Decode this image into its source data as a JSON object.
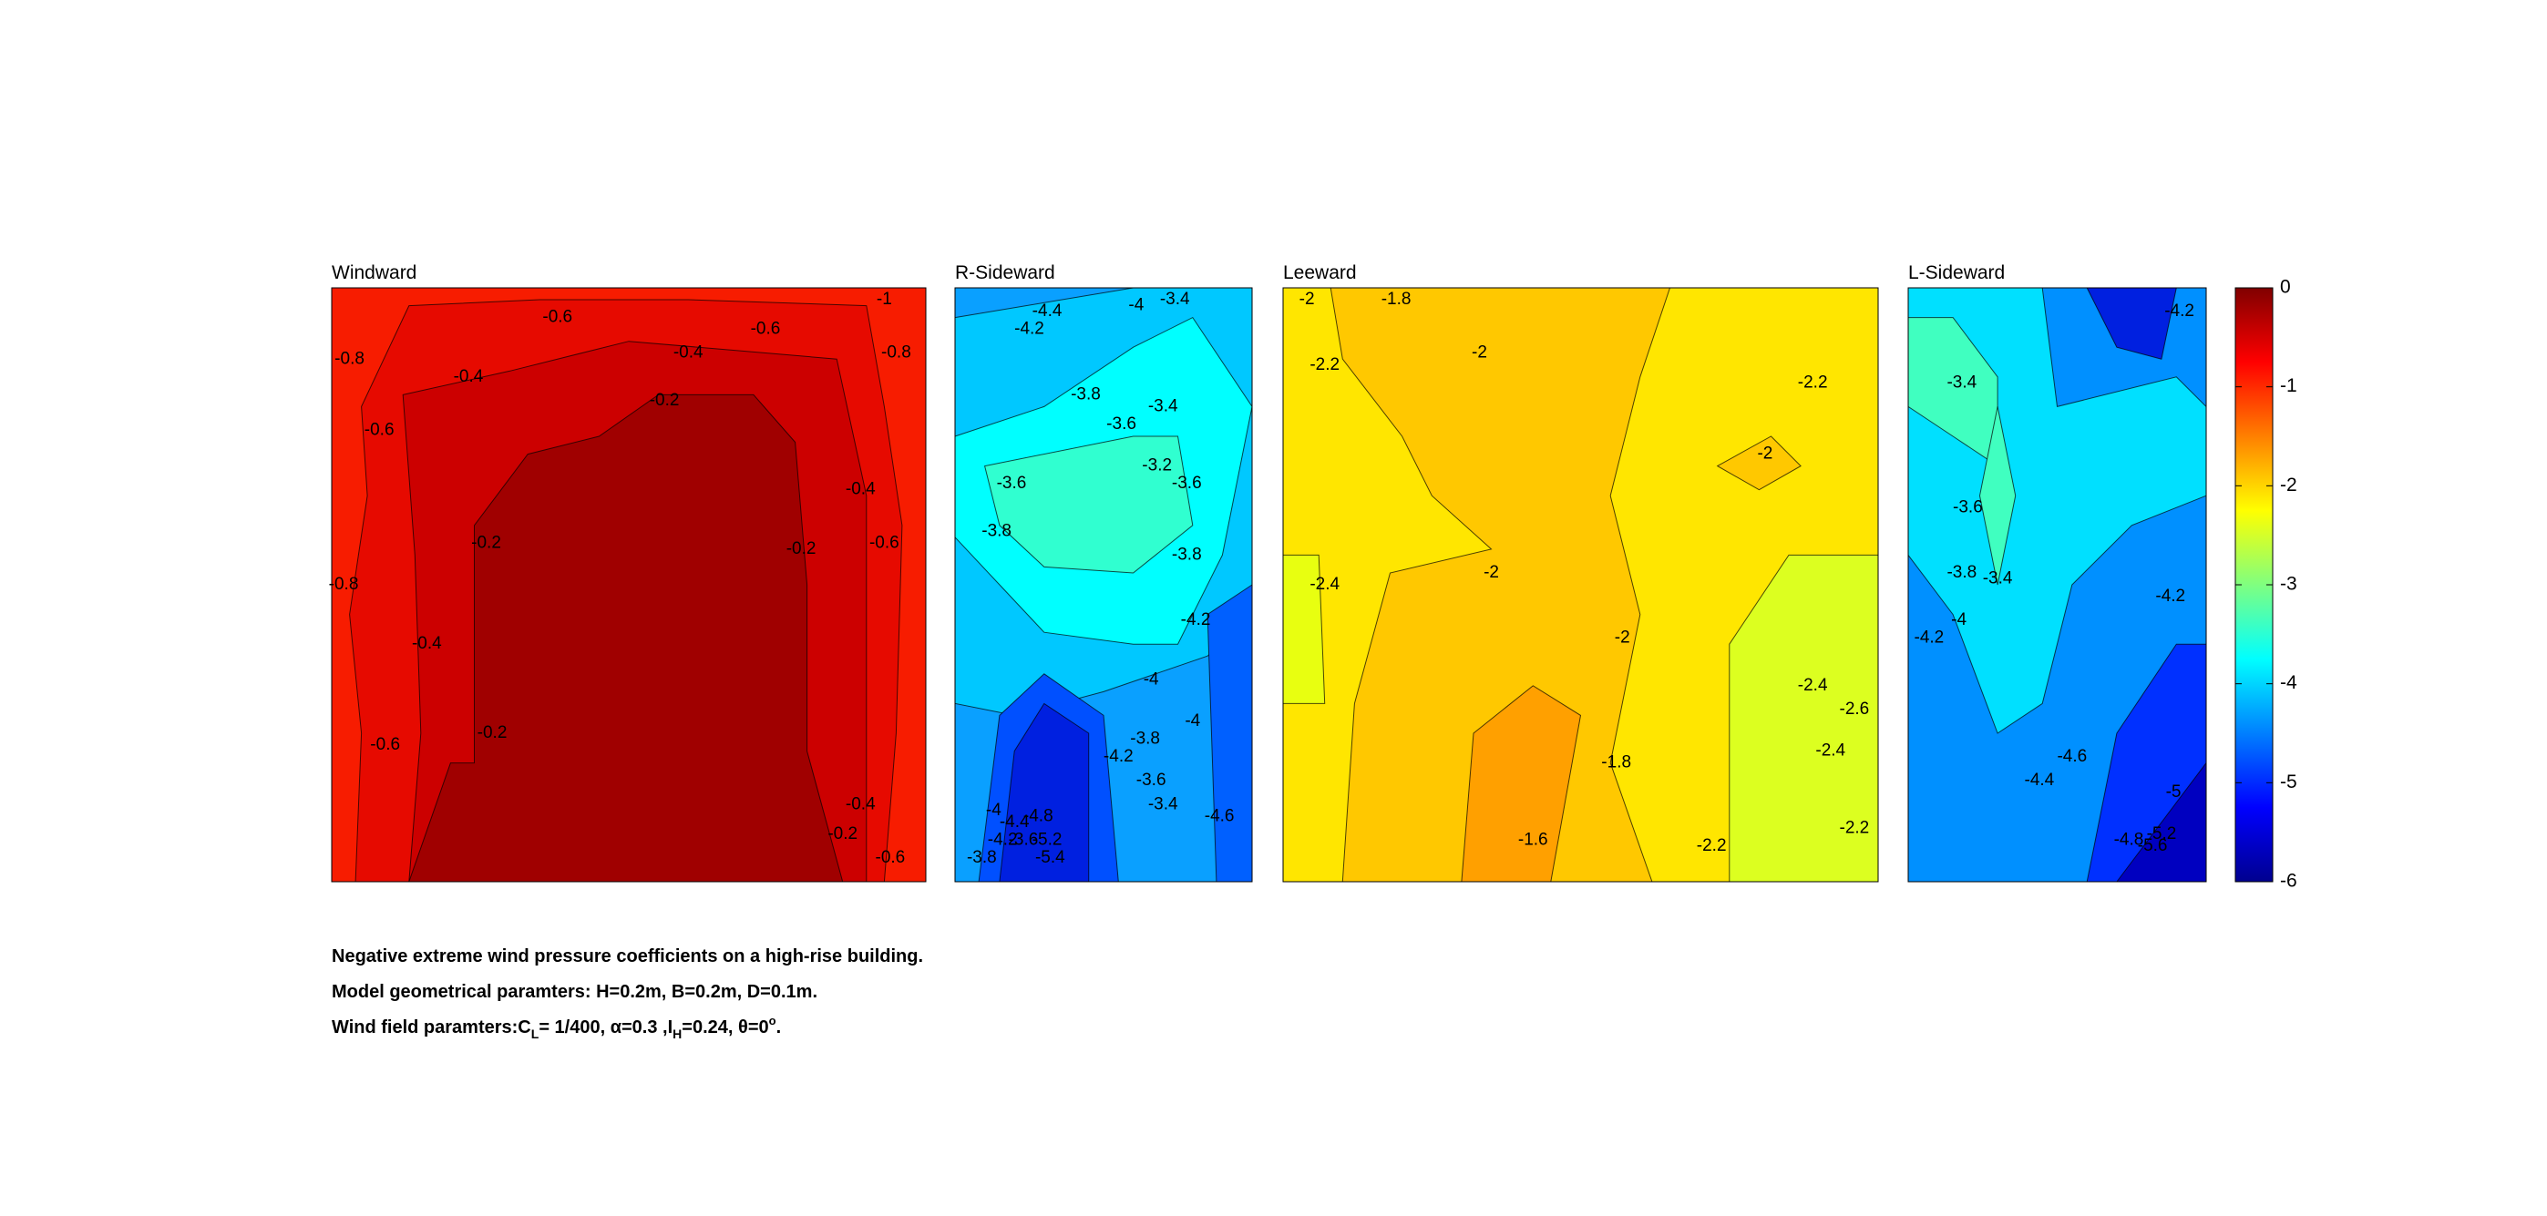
{
  "chart_data": [
    {
      "type": "contour",
      "title": "Windward",
      "contour_labels": [
        -0.6,
        -1,
        -0.6,
        -0.8,
        -0.4,
        -0.8,
        -0.4,
        -0.2,
        -0.6,
        -0.4,
        -0.2,
        -0.2,
        -0.6,
        -0.8,
        -0.4,
        -0.6,
        -0.2,
        -0.4,
        -0.2,
        -0.6
      ]
    },
    {
      "type": "contour",
      "title": "R-Sideward",
      "contour_labels": [
        -4.4,
        -4,
        -3.4,
        -4.2,
        -3.8,
        -3.4,
        -3.6,
        -3.2,
        -3.6,
        -3.6,
        -3.8,
        -3.8,
        -4.2,
        -4,
        -4,
        -3.8,
        -4.2,
        -3.6,
        -3.4,
        -4.6,
        -4,
        -4.4,
        -4.8,
        -4.2,
        -3.8,
        -3.6,
        -5.2,
        -5.4
      ]
    },
    {
      "type": "contour",
      "title": "Leeward",
      "contour_labels": [
        -2,
        -1.8,
        -2,
        -2.2,
        -2.2,
        -2,
        -2,
        -2.4,
        -2,
        -2.4,
        -2.6,
        -1.8,
        -2.4,
        -1.6,
        -2.2,
        -2.2
      ]
    },
    {
      "type": "contour",
      "title": "L-Sideward",
      "contour_labels": [
        -4.2,
        -3.4,
        -3.6,
        -3.8,
        -3.4,
        -4,
        -4.2,
        -4.2,
        -4.6,
        -4.4,
        -5,
        -4.8,
        -5.2,
        -5.6
      ]
    }
  ],
  "colorbar": {
    "clim": [
      -6,
      0
    ],
    "ticks": [
      0,
      -1,
      -2,
      -3,
      -4,
      -5,
      -6
    ]
  },
  "caption": {
    "line1": "Negative extreme wind pressure coefficients on a high-rise building.",
    "line2": "Model geometrical paramters: H=0.2m, B=0.2m, D=0.1m.",
    "line3": [
      "Wind field paramters:C",
      "L",
      "= 1/400, α=0.3 ,I",
      "H",
      "=0.24, θ=0",
      "o",
      "."
    ]
  }
}
